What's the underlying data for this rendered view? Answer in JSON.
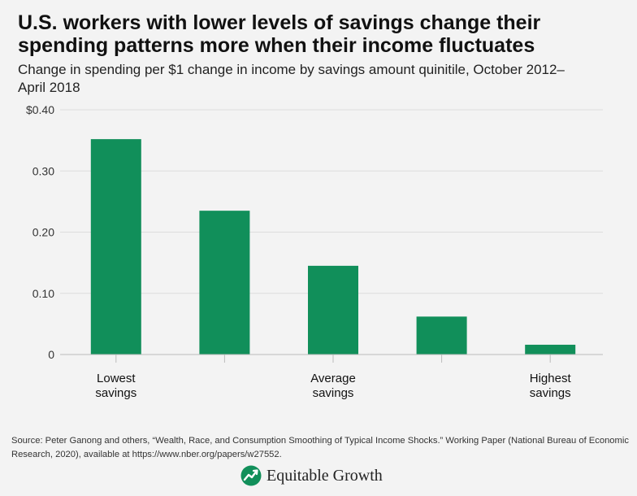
{
  "title": "U.S. workers with lower levels of savings change their spending patterns more when their income fluctuates",
  "subtitle": "Change in spending per $1 change in income by savings amount quinitile, October 2012–April 2018",
  "colors": {
    "bar": "#118f5a",
    "grid": "#dddddd",
    "axis": "#bbbbbb",
    "background": "#f3f3f3",
    "logo": "#118f5a"
  },
  "chart_data": {
    "type": "bar",
    "categories": [
      "Lowest savings",
      "",
      "Average savings",
      "",
      "Highest savings"
    ],
    "values": [
      0.352,
      0.235,
      0.145,
      0.062,
      0.016
    ],
    "ylim": [
      0,
      0.4
    ],
    "yticks": [
      {
        "value": 0,
        "label": "0"
      },
      {
        "value": 0.1,
        "label": "0.10"
      },
      {
        "value": 0.2,
        "label": "0.20"
      },
      {
        "value": 0.3,
        "label": "0.30"
      },
      {
        "value": 0.4,
        "label": "$0.40"
      }
    ],
    "xlabel": "",
    "ylabel": "",
    "grid": true,
    "legend": "none"
  },
  "source": "Source: Peter Ganong and others, “Wealth, Race, and Consumption Smoothing of Typical Income Shocks.” Working Paper (National Bureau of Economic Research, 2020), available at  https://www.nber.org/papers/w27552.",
  "logo": {
    "icon": "trend-up-icon",
    "text": "Equitable Growth"
  }
}
